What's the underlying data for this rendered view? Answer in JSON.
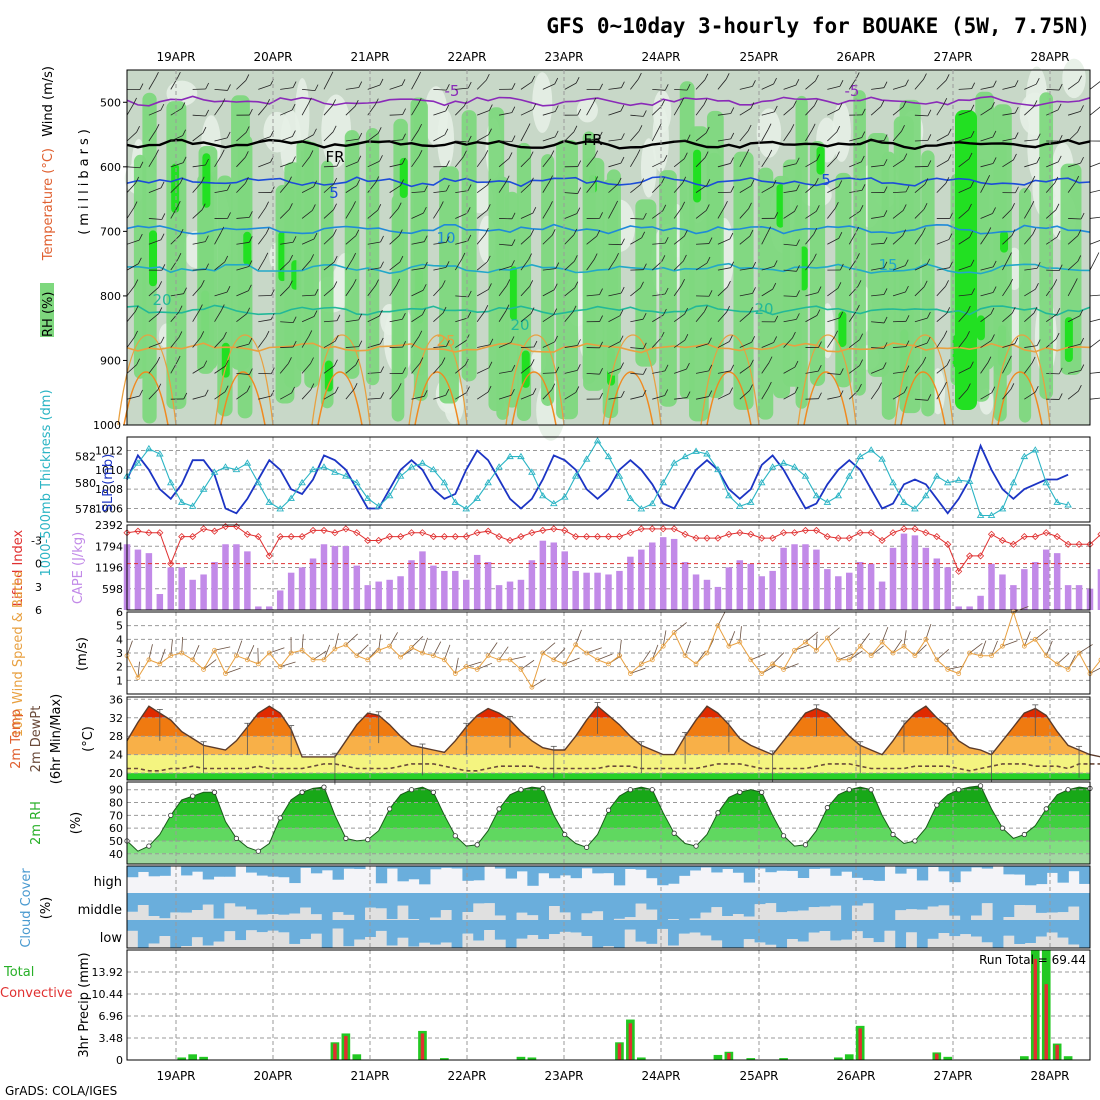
{
  "title": "GFS 0~10day 3-hourly for BOUAKE (5W, 7.75N)",
  "credit": "GrADS: COLA/IGES",
  "date_labels": [
    "19APR",
    "20APR",
    "21APR",
    "22APR",
    "23APR",
    "24APR",
    "25APR",
    "26APR",
    "27APR",
    "28APR"
  ],
  "colors": {
    "frame": "#000000",
    "grid": "#9a9a9a",
    "rh_light": "#e6f0e6",
    "rh_mid": "#c8d8c8",
    "rh_green": "#7ed87e",
    "rh_bright": "#22e022",
    "ts_dark": "#1c34c4",
    "ts_cyan": "#2ab4c4",
    "li": "#e03030",
    "cape": "#c28ae8",
    "wind10": "#e8a040",
    "t_red": "#e02a00",
    "t_orange": "#f07a10",
    "t_amber": "#f8b048",
    "t_yellow": "#f4f480",
    "t_green": "#28d028",
    "dew": "#6a4a3a",
    "cloud_blue": "#6aaedc",
    "cloud_grey": "#e0e0e0",
    "precip_green": "#22c822",
    "precip_red": "#e03030"
  },
  "panels": {
    "upper": {
      "ylabel_wind": "Wind (m/s)",
      "ylabel_temp": "Temperature (°C)",
      "ylabel_rh": "RH (%)",
      "ylabel_unit": "(millibars)",
      "contour_labels": [
        "-5",
        "-5",
        "FR",
        "FR",
        "5",
        "5",
        "10",
        "15",
        "20",
        "20",
        "20",
        "25"
      ]
    },
    "thick": {
      "ylabel_left": "1000-500mb Thickness (dm)",
      "ylabel_right": "SLP (mb)"
    },
    "li": {
      "ylabel_left": "Lifted Index",
      "ylabel_right": "CAPE (J/kg)"
    },
    "wind10": {
      "ylabel": "10m Wind Speed & Barbs",
      "unit": "(m/s)"
    },
    "temp": {
      "ylabel1": "2m Temp",
      "ylabel2": "2m DewPt",
      "ylabel3": "(6hr Min/Max)",
      "unit": "(°C)"
    },
    "rh": {
      "ylabel": "2m RH",
      "unit": "(%)"
    },
    "cloud": {
      "ylabel": "Cloud Cover",
      "unit": "(%)",
      "levels": [
        "high",
        "middle",
        "low"
      ]
    },
    "precip": {
      "ylabel_green": "Total",
      "ylabel_red": "Convective",
      "ylabel": "3hr Precip (mm)",
      "annotation": "Run Total = 69.44"
    }
  },
  "chart_data": [
    {
      "type": "heatmap",
      "name": "RH cross-section",
      "y_ticks": [
        500,
        600,
        700,
        800,
        900,
        1000
      ],
      "ylim": [
        1000,
        450
      ],
      "temperature_contours": [
        {
          "label": "-5",
          "p": 498
        },
        {
          "label": "FR",
          "p": 565
        },
        {
          "label": "5",
          "p": 623
        },
        {
          "label": "10",
          "p": 697
        },
        {
          "label": "15",
          "p": 758
        },
        {
          "label": "20",
          "p": 822
        },
        {
          "label": "25",
          "p": 880
        }
      ]
    },
    {
      "type": "line",
      "name": "thickness_slp",
      "x_ticks": [
        "19APR",
        "20APR",
        "21APR",
        "22APR",
        "23APR",
        "24APR",
        "25APR",
        "26APR",
        "27APR",
        "28APR"
      ],
      "y_left_ticks": [
        578,
        580,
        582
      ],
      "y_left_lim": [
        577,
        583.5
      ],
      "y_right_ticks": [
        1006,
        1008,
        1010,
        1012
      ],
      "y_right_lim": [
        1004.6,
        1013.4
      ],
      "series": [
        {
          "axis": "right",
          "values": [
            1009,
            1011.5,
            1010,
            1008,
            1007,
            1008.5,
            1011,
            1011,
            1009.5,
            1006,
            1005.5,
            1007,
            1009,
            1011,
            1010,
            1008,
            1007.5,
            1009,
            1011.5,
            1011,
            1010,
            1008,
            1006,
            1006,
            1008,
            1010,
            1011,
            1010,
            1008,
            1007,
            1007.5,
            1010,
            1012,
            1011,
            1009,
            1007,
            1006,
            1007,
            1009,
            1011.5,
            1011,
            1010,
            1008,
            1007,
            1008,
            1010,
            1011,
            1010,
            1008.5,
            1006.5,
            1006,
            1008,
            1010,
            1011,
            1010,
            1008,
            1007,
            1008,
            1010.5,
            1011.5,
            1010,
            1008,
            1006,
            1006.5,
            1008.5,
            1010,
            1011,
            1010,
            1008,
            1006,
            1006.5,
            1008.5,
            1009,
            1008.5,
            1007,
            1005.5,
            1007,
            1009,
            1012.5,
            1010,
            1008,
            1007,
            1008,
            1008.5,
            1009,
            1009,
            1009.5
          ]
        },
        {
          "axis": "left",
          "values": [
            580.5,
            581.5,
            582.6,
            582.2,
            580,
            578.5,
            578.2,
            579.5,
            580.8,
            581.2,
            581,
            581.5,
            580,
            578.5,
            578,
            578.8,
            580,
            581,
            581.2,
            580.8,
            580.5,
            580,
            578.8,
            578.2,
            579,
            580.5,
            581.2,
            581.5,
            581,
            580,
            578.5,
            578,
            578.8,
            580,
            581.2,
            582,
            582,
            580.8,
            579,
            578.4,
            578.9,
            580.5,
            581.8,
            583.2,
            582,
            580.5,
            578.8,
            578,
            578.4,
            580,
            581.5,
            582,
            582.4,
            582.2,
            581,
            579,
            578.2,
            578.5,
            580,
            581.2,
            581.5,
            581.2,
            580.5,
            579,
            578.5,
            579,
            580.5,
            582,
            582.5,
            581.8,
            580,
            578.5,
            578,
            579,
            580.5,
            580,
            580.2,
            580.1,
            577.5,
            577.5,
            578,
            580,
            582,
            582.5,
            580,
            578.5,
            578.3
          ]
        }
      ]
    },
    {
      "type": "bar",
      "name": "cape_li",
      "y_left_ticks": [
        -3,
        0,
        3,
        6
      ],
      "y_left_lim": [
        6,
        -5
      ],
      "y_right_ticks": [
        598,
        1196,
        1794,
        2392
      ],
      "y_right_lim": [
        0,
        2392
      ],
      "cape": [
        1850,
        1700,
        1600,
        450,
        1200,
        1200,
        850,
        1000,
        1350,
        1850,
        1850,
        1650,
        100,
        100,
        550,
        1050,
        1200,
        1450,
        1850,
        1800,
        1800,
        1250,
        700,
        800,
        850,
        950,
        1400,
        1650,
        1250,
        1100,
        1100,
        850,
        1550,
        1350,
        700,
        800,
        850,
        1400,
        1950,
        1900,
        1650,
        1100,
        1050,
        1050,
        1000,
        1100,
        1500,
        1700,
        1900,
        2050,
        2000,
        1350,
        1000,
        850,
        650,
        1200,
        1400,
        1300,
        950,
        1100,
        1750,
        1850,
        1850,
        1700,
        1150,
        950,
        1050,
        1350,
        1300,
        800,
        1750,
        2150,
        2100,
        1750,
        1450,
        1200,
        100,
        100,
        400,
        1300,
        1000,
        700,
        1150,
        1350,
        1700,
        1600,
        700,
        700,
        600,
        1150
      ],
      "lifted_index": [
        -4,
        -4.2,
        -4,
        -4,
        0,
        -3.5,
        -3.5,
        -4.5,
        -4.2,
        -4.8,
        -4.8,
        -3.8,
        -3.5,
        -1,
        -3.5,
        -3.5,
        -3.5,
        -4.3,
        -4.3,
        -4,
        -4.5,
        -4,
        -3,
        -3,
        -3.5,
        -3.5,
        -4,
        -4,
        -3.5,
        -3.5,
        -3.5,
        -3.5,
        -4,
        -4.2,
        -3.5,
        -3,
        -3.5,
        -4,
        -4.3,
        -4.5,
        -4.3,
        -3.5,
        -3.5,
        -3.5,
        -3.5,
        -3.5,
        -4,
        -4.5,
        -4.5,
        -4.5,
        -4.5,
        -3.8,
        -3.3,
        -3.3,
        -3.3,
        -3.8,
        -4,
        -3.8,
        -3.3,
        -3.3,
        -4,
        -4,
        -4.3,
        -4.3,
        -3.5,
        -3.3,
        -3.3,
        -4,
        -4,
        -3,
        -4,
        -4.5,
        -4.5,
        -4,
        -3.5,
        -2.5,
        1,
        -1,
        -1,
        -3.8,
        -3,
        -2.5,
        -3.5,
        -3.5,
        -4,
        -3.5,
        -2.5,
        -2.5,
        -2.5,
        -3.8
      ]
    },
    {
      "type": "line",
      "name": "wind10",
      "y_ticks": [
        1,
        2,
        3,
        4,
        5,
        6
      ],
      "ylim": [
        0,
        6
      ],
      "values": [
        2.8,
        1.2,
        2.5,
        2.2,
        2.8,
        3,
        2.5,
        1.8,
        3.2,
        1.5,
        2.8,
        2.5,
        2.2,
        3,
        2,
        3,
        3.2,
        2.5,
        2.5,
        3.3,
        3.6,
        2.8,
        2.5,
        3.2,
        3.5,
        2.7,
        3.4,
        3,
        2.8,
        2.5,
        1.5,
        2,
        1.8,
        2.8,
        2.5,
        2.5,
        1.8,
        0.5,
        3,
        2.5,
        2.2,
        3.6,
        3,
        2.5,
        2.2,
        2.8,
        1.5,
        2.2,
        2.5,
        3.5,
        4.5,
        2.8,
        2.2,
        3,
        5,
        3.5,
        3.8,
        2.5,
        1.5,
        2.2,
        1.8,
        3.2,
        3.8,
        3.2,
        4.1,
        2.5,
        2.5,
        3.5,
        2.8,
        3.8,
        3,
        3.5,
        2.8,
        4,
        2.5,
        1.8,
        1.5,
        3,
        2.8,
        2.8,
        3.5,
        6,
        3.5,
        4,
        2.8,
        2.2,
        1.8,
        3,
        1.5,
        2.5
      ]
    },
    {
      "type": "area",
      "name": "temp_dewpt",
      "y_ticks": [
        20,
        24,
        28,
        32,
        36
      ],
      "ylim": [
        18.5,
        36.5
      ],
      "temp": [
        27,
        31,
        34.5,
        33,
        31.5,
        29,
        27.5,
        26,
        25.5,
        25,
        27,
        30,
        33,
        34.5,
        33,
        29.5,
        23.5,
        23.5,
        23.5,
        23.5,
        27,
        30.5,
        33,
        32.5,
        30.5,
        28,
        26,
        25.5,
        25,
        24.5,
        27,
        30,
        32.5,
        34,
        33,
        31.5,
        29,
        27,
        25.5,
        25,
        25,
        28,
        31.5,
        34.5,
        32.5,
        30.5,
        28,
        26,
        25,
        24,
        24,
        28,
        31.5,
        34.5,
        33,
        30.5,
        27.5,
        26,
        25,
        24,
        27,
        30,
        33,
        34,
        33,
        30.5,
        28,
        26,
        25,
        24,
        27,
        30.5,
        33,
        34.5,
        32,
        30,
        27,
        25.5,
        25,
        24,
        27,
        30,
        33,
        34,
        32.5,
        29,
        26,
        25,
        24,
        23.5,
        24,
        23.5
      ],
      "dewpt": [
        21,
        21,
        20.5,
        20.5,
        21,
        21,
        21.5,
        21,
        21,
        21,
        21,
        21,
        21.5,
        21,
        21,
        21,
        21,
        21.5,
        22,
        22,
        21.5,
        21,
        21,
        21,
        21,
        21.5,
        22,
        22,
        22,
        21.5,
        21,
        20.5,
        20.5,
        21,
        21.5,
        21.5,
        21.5,
        21.5,
        21,
        21,
        21,
        21,
        21,
        21,
        21.5,
        21.5,
        21.5,
        21,
        21,
        21,
        21,
        21,
        21,
        21.5,
        22,
        22,
        22,
        21.5,
        21,
        21,
        21,
        21,
        21,
        21.5,
        22,
        22,
        22,
        21.5,
        21,
        21,
        21,
        21,
        21.5,
        21.5,
        21.5,
        21.5,
        21,
        20.5,
        21,
        21.5,
        22,
        22,
        22,
        21.5,
        21.5,
        21.5,
        21,
        22,
        22,
        22
      ]
    },
    {
      "type": "area",
      "name": "rh2m",
      "y_ticks": [
        40,
        50,
        60,
        70,
        80,
        90
      ],
      "ylim": [
        32,
        96
      ],
      "values": [
        50,
        42,
        46,
        55,
        70,
        82,
        85,
        88,
        88,
        65,
        52,
        45,
        42,
        48,
        68,
        82,
        88,
        91,
        92,
        70,
        52,
        50,
        51,
        58,
        75,
        86,
        90,
        92,
        88,
        70,
        54,
        46,
        47,
        58,
        75,
        86,
        90,
        92,
        91,
        70,
        55,
        48,
        45,
        55,
        74,
        85,
        90,
        92,
        90,
        72,
        56,
        48,
        46,
        55,
        72,
        84,
        88,
        90,
        88,
        70,
        54,
        46,
        47,
        58,
        76,
        86,
        90,
        92,
        90,
        70,
        55,
        48,
        50,
        60,
        78,
        86,
        90,
        92,
        93,
        75,
        60,
        52,
        55,
        62,
        75,
        86,
        90,
        92,
        91
      ]
    },
    {
      "type": "table",
      "name": "cloud_cover",
      "levels": [
        "high",
        "middle",
        "low"
      ]
    },
    {
      "type": "bar",
      "name": "precip",
      "y_ticks": [
        0,
        3.48,
        6.96,
        10.44,
        13.92
      ],
      "ylim": [
        0,
        17.4
      ],
      "total": [
        [
          5,
          0.4
        ],
        [
          6,
          0.9
        ],
        [
          7,
          0.5
        ],
        [
          19,
          2.8
        ],
        [
          20,
          4.2
        ],
        [
          21,
          0.9
        ],
        [
          27,
          4.6
        ],
        [
          29,
          0.3
        ],
        [
          36,
          0.5
        ],
        [
          37,
          0.4
        ],
        [
          45,
          2.8
        ],
        [
          46,
          6.4
        ],
        [
          47,
          0.4
        ],
        [
          54,
          0.8
        ],
        [
          55,
          1.3
        ],
        [
          57,
          0.3
        ],
        [
          60,
          0.3
        ],
        [
          65,
          0.4
        ],
        [
          66,
          0.9
        ],
        [
          67,
          5.4
        ],
        [
          74,
          1.2
        ],
        [
          75,
          0.5
        ],
        [
          82,
          0.6
        ],
        [
          83,
          17.4
        ],
        [
          84,
          17.4
        ],
        [
          85,
          2.6
        ],
        [
          86,
          0.6
        ],
        [
          91,
          1.2
        ],
        [
          92,
          1.6
        ],
        [
          93,
          3.3
        ]
      ],
      "convective": [
        [
          19,
          2.6
        ],
        [
          20,
          3.8
        ],
        [
          27,
          4.2
        ],
        [
          45,
          2.6
        ],
        [
          46,
          5.8
        ],
        [
          55,
          1.1
        ],
        [
          67,
          5
        ],
        [
          74,
          1
        ],
        [
          83,
          16
        ],
        [
          84,
          12
        ],
        [
          85,
          2.4
        ],
        [
          92,
          1.3
        ],
        [
          93,
          3.1
        ]
      ]
    }
  ]
}
